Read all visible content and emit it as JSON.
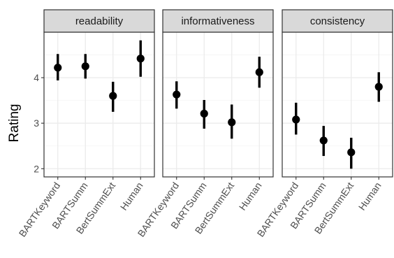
{
  "chart_data": {
    "type": "scatter",
    "ylabel": "Rating",
    "xlabel": "",
    "ylim": [
      1.82,
      5.0
    ],
    "yticks": [
      2,
      3,
      4
    ],
    "categories": [
      "BARTKeyword",
      "BARTSumm",
      "BertSummExt",
      "Human"
    ],
    "grid": true,
    "panels": [
      {
        "title": "readability",
        "points": [
          {
            "category": "BARTKeyword",
            "value": 4.22,
            "low": 3.94,
            "high": 4.52
          },
          {
            "category": "BARTSumm",
            "value": 4.25,
            "low": 3.98,
            "high": 4.52
          },
          {
            "category": "BertSummExt",
            "value": 3.6,
            "low": 3.25,
            "high": 3.91
          },
          {
            "category": "Human",
            "value": 4.42,
            "low": 4.02,
            "high": 4.82
          }
        ]
      },
      {
        "title": "informativeness",
        "points": [
          {
            "category": "BARTKeyword",
            "value": 3.63,
            "low": 3.32,
            "high": 3.92
          },
          {
            "category": "BARTSumm",
            "value": 3.21,
            "low": 2.88,
            "high": 3.51
          },
          {
            "category": "BertSummExt",
            "value": 3.02,
            "low": 2.66,
            "high": 3.41
          },
          {
            "category": "Human",
            "value": 4.12,
            "low": 3.78,
            "high": 4.46
          }
        ]
      },
      {
        "title": "consistency",
        "points": [
          {
            "category": "BARTKeyword",
            "value": 3.08,
            "low": 2.75,
            "high": 3.45
          },
          {
            "category": "BARTSumm",
            "value": 2.62,
            "low": 2.28,
            "high": 2.94
          },
          {
            "category": "BertSummExt",
            "value": 2.36,
            "low": 2.0,
            "high": 2.68
          },
          {
            "category": "Human",
            "value": 3.8,
            "low": 3.47,
            "high": 4.12
          }
        ]
      }
    ],
    "colors": {
      "strip_fill": "#d9d9d9",
      "strip_border": "#333333",
      "panel_border": "#333333",
      "grid_major": "#ebebeb",
      "grid_minor": "#f5f5f5",
      "point": "#000000"
    }
  }
}
